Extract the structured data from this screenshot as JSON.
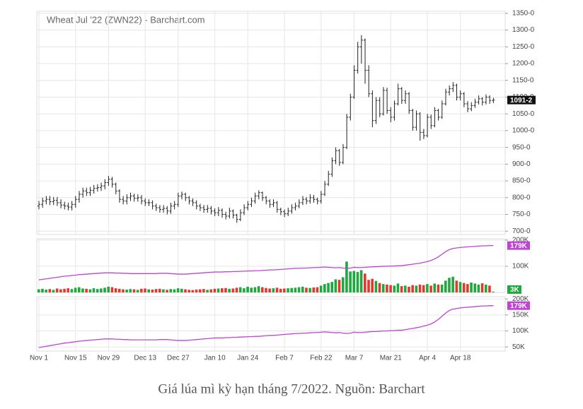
{
  "chart_data": {
    "type": "ohlc",
    "title": "Wheat Jul '22 (ZWN22) - Barchart.com",
    "categories": [
      "Nov 1",
      null,
      null,
      null,
      null,
      null,
      null,
      null,
      null,
      null,
      "Nov 15",
      null,
      null,
      null,
      null,
      null,
      null,
      null,
      null,
      "Nov 29",
      null,
      null,
      null,
      null,
      null,
      null,
      null,
      null,
      null,
      "Dec 13",
      null,
      null,
      null,
      null,
      null,
      null,
      null,
      null,
      "Dec 27",
      null,
      null,
      null,
      null,
      null,
      null,
      null,
      null,
      null,
      "Jan 10",
      null,
      null,
      null,
      null,
      null,
      null,
      null,
      null,
      "Jan 24",
      null,
      null,
      null,
      null,
      null,
      null,
      null,
      null,
      null,
      "Feb 7",
      null,
      null,
      null,
      null,
      null,
      null,
      null,
      null,
      null,
      "Feb 22",
      null,
      null,
      null,
      null,
      null,
      null,
      null,
      null,
      "Mar 7",
      null,
      null,
      null,
      null,
      null,
      null,
      null,
      null,
      null,
      "Mar 21",
      null,
      null,
      null,
      null,
      null,
      null,
      null,
      null,
      null,
      "Apr 4",
      null,
      null,
      null,
      null,
      null,
      null,
      null,
      null,
      "Apr 18",
      null,
      null,
      null,
      null,
      null,
      null,
      null,
      null,
      null
    ],
    "ohlc": [
      [
        775,
        790,
        765,
        780
      ],
      [
        780,
        800,
        770,
        790
      ],
      [
        790,
        805,
        780,
        795
      ],
      [
        795,
        805,
        778,
        788
      ],
      [
        788,
        802,
        778,
        792
      ],
      [
        792,
        802,
        775,
        785
      ],
      [
        785,
        795,
        768,
        778
      ],
      [
        778,
        788,
        765,
        775
      ],
      [
        775,
        785,
        762,
        772
      ],
      [
        772,
        790,
        762,
        780
      ],
      [
        780,
        805,
        770,
        795
      ],
      [
        795,
        820,
        785,
        810
      ],
      [
        810,
        830,
        800,
        820
      ],
      [
        820,
        830,
        805,
        815
      ],
      [
        815,
        832,
        805,
        822
      ],
      [
        822,
        838,
        812,
        828
      ],
      [
        828,
        840,
        818,
        830
      ],
      [
        830,
        845,
        820,
        835
      ],
      [
        835,
        855,
        825,
        845
      ],
      [
        845,
        865,
        835,
        855
      ],
      [
        855,
        862,
        830,
        840
      ],
      [
        840,
        845,
        810,
        820
      ],
      [
        820,
        825,
        785,
        795
      ],
      [
        795,
        805,
        780,
        790
      ],
      [
        790,
        810,
        780,
        800
      ],
      [
        800,
        815,
        790,
        805
      ],
      [
        805,
        812,
        788,
        798
      ],
      [
        798,
        810,
        788,
        800
      ],
      [
        800,
        808,
        780,
        790
      ],
      [
        790,
        798,
        775,
        785
      ],
      [
        785,
        795,
        775,
        785
      ],
      [
        785,
        792,
        765,
        775
      ],
      [
        775,
        782,
        760,
        770
      ],
      [
        770,
        778,
        755,
        765
      ],
      [
        765,
        778,
        755,
        768
      ],
      [
        768,
        775,
        750,
        760
      ],
      [
        760,
        785,
        752,
        775
      ],
      [
        775,
        790,
        765,
        780
      ],
      [
        780,
        815,
        772,
        805
      ],
      [
        805,
        818,
        795,
        810
      ],
      [
        810,
        815,
        790,
        800
      ],
      [
        800,
        805,
        780,
        790
      ],
      [
        790,
        798,
        775,
        785
      ],
      [
        785,
        792,
        765,
        775
      ],
      [
        775,
        782,
        760,
        770
      ],
      [
        770,
        778,
        755,
        765
      ],
      [
        765,
        778,
        755,
        768
      ],
      [
        768,
        775,
        750,
        760
      ],
      [
        760,
        768,
        745,
        755
      ],
      [
        755,
        772,
        745,
        762
      ],
      [
        762,
        768,
        740,
        750
      ],
      [
        750,
        758,
        735,
        745
      ],
      [
        745,
        770,
        738,
        760
      ],
      [
        760,
        765,
        738,
        748
      ],
      [
        748,
        752,
        725,
        735
      ],
      [
        735,
        765,
        730,
        755
      ],
      [
        755,
        780,
        748,
        770
      ],
      [
        770,
        790,
        762,
        780
      ],
      [
        780,
        800,
        772,
        790
      ],
      [
        790,
        815,
        782,
        805
      ],
      [
        805,
        822,
        795,
        815
      ],
      [
        815,
        818,
        790,
        800
      ],
      [
        800,
        805,
        780,
        790
      ],
      [
        790,
        795,
        770,
        780
      ],
      [
        780,
        795,
        772,
        785
      ],
      [
        785,
        790,
        755,
        765
      ],
      [
        765,
        770,
        748,
        758
      ],
      [
        758,
        765,
        742,
        752
      ],
      [
        752,
        770,
        745,
        760
      ],
      [
        760,
        780,
        752,
        770
      ],
      [
        770,
        785,
        762,
        775
      ],
      [
        775,
        795,
        768,
        785
      ],
      [
        785,
        805,
        778,
        795
      ],
      [
        795,
        802,
        780,
        790
      ],
      [
        790,
        810,
        782,
        800
      ],
      [
        800,
        808,
        785,
        795
      ],
      [
        795,
        800,
        780,
        790
      ],
      [
        790,
        820,
        782,
        810
      ],
      [
        810,
        850,
        805,
        840
      ],
      [
        840,
        880,
        835,
        870
      ],
      [
        870,
        920,
        862,
        910
      ],
      [
        910,
        950,
        900,
        940
      ],
      [
        940,
        945,
        895,
        905
      ],
      [
        905,
        960,
        900,
        950
      ],
      [
        950,
        1050,
        945,
        1040
      ],
      [
        1040,
        1110,
        1030,
        1100
      ],
      [
        1100,
        1195,
        1095,
        1180
      ],
      [
        1180,
        1265,
        1170,
        1250
      ],
      [
        1250,
        1285,
        1200,
        1270
      ],
      [
        1270,
        1275,
        1140,
        1180
      ],
      [
        1180,
        1195,
        1100,
        1110
      ],
      [
        1110,
        1120,
        1010,
        1030
      ],
      [
        1030,
        1100,
        1020,
        1090
      ],
      [
        1090,
        1100,
        1040,
        1050
      ],
      [
        1050,
        1130,
        1045,
        1120
      ],
      [
        1120,
        1128,
        1050,
        1060
      ],
      [
        1060,
        1070,
        1025,
        1040
      ],
      [
        1040,
        1090,
        1030,
        1080
      ],
      [
        1080,
        1140,
        1075,
        1125
      ],
      [
        1125,
        1130,
        1080,
        1090
      ],
      [
        1090,
        1120,
        1080,
        1110
      ],
      [
        1110,
        1115,
        1050,
        1060
      ],
      [
        1060,
        1065,
        1000,
        1010
      ],
      [
        1010,
        1060,
        1000,
        1050
      ],
      [
        1050,
        1055,
        970,
        995
      ],
      [
        995,
        1005,
        975,
        985
      ],
      [
        985,
        1050,
        980,
        1040
      ],
      [
        1040,
        1048,
        1005,
        1015
      ],
      [
        1015,
        1070,
        1010,
        1060
      ],
      [
        1060,
        1065,
        1030,
        1040
      ],
      [
        1040,
        1090,
        1035,
        1080
      ],
      [
        1080,
        1125,
        1075,
        1115
      ],
      [
        1115,
        1135,
        1105,
        1125
      ],
      [
        1125,
        1145,
        1115,
        1135
      ],
      [
        1135,
        1140,
        1090,
        1100
      ],
      [
        1100,
        1120,
        1090,
        1110
      ],
      [
        1110,
        1115,
        1070,
        1080
      ],
      [
        1080,
        1088,
        1055,
        1065
      ],
      [
        1065,
        1085,
        1058,
        1075
      ],
      [
        1075,
        1095,
        1068,
        1085
      ],
      [
        1085,
        1105,
        1078,
        1095
      ],
      [
        1095,
        1100,
        1075,
        1085
      ],
      [
        1085,
        1108,
        1078,
        1100
      ],
      [
        1100,
        1105,
        1080,
        1090
      ],
      [
        1090,
        1098,
        1082,
        1091.25
      ]
    ],
    "bar_color": "#222222",
    "ylim": [
      690,
      1356
    ],
    "yticks": [
      {
        "value": 700,
        "label": "700-0"
      },
      {
        "value": 750,
        "label": "750-0"
      },
      {
        "value": 800,
        "label": "800-0"
      },
      {
        "value": 850,
        "label": "850-0"
      },
      {
        "value": 900,
        "label": "900-0"
      },
      {
        "value": 950,
        "label": "950-0"
      },
      {
        "value": 1000,
        "label": "1000-0"
      },
      {
        "value": 1050,
        "label": "1050-0"
      },
      {
        "value": 1100,
        "label": "1100-0"
      },
      {
        "value": 1150,
        "label": "1150-0"
      },
      {
        "value": 1200,
        "label": "1200-0"
      },
      {
        "value": 1250,
        "label": "1250-0"
      },
      {
        "value": 1300,
        "label": "1300-0"
      },
      {
        "value": 1350,
        "label": "1350-0"
      }
    ],
    "last_price_label": "1091-2",
    "grid": true,
    "volume": {
      "values": [
        12000,
        14000,
        11000,
        13000,
        10000,
        15000,
        12000,
        14000,
        16000,
        13000,
        18000,
        20000,
        15000,
        14000,
        12000,
        16000,
        13000,
        15000,
        18000,
        22000,
        20000,
        16000,
        14000,
        12000,
        11000,
        13000,
        12000,
        10000,
        14000,
        15000,
        12000,
        11000,
        13000,
        14000,
        12000,
        10000,
        13000,
        12000,
        16000,
        14000,
        12000,
        10000,
        9000,
        11000,
        12000,
        13000,
        10000,
        12000,
        14000,
        15000,
        16000,
        17000,
        14000,
        15000,
        18000,
        20000,
        16000,
        22000,
        18000,
        20000,
        24000,
        20000,
        17000,
        15000,
        16000,
        18000,
        14000,
        15000,
        16000,
        17000,
        18000,
        20000,
        22000,
        18000,
        17000,
        19000,
        20000,
        26000,
        32000,
        36000,
        40000,
        50000,
        48000,
        58000,
        118000,
        80000,
        82000,
        78000,
        85000,
        72000,
        48000,
        52000,
        44000,
        36000,
        32000,
        30000,
        28000,
        26000,
        34000,
        24000,
        26000,
        22000,
        28000,
        26000,
        30000,
        28000,
        32000,
        26000,
        34000,
        30000,
        30000,
        45000,
        56000,
        60000,
        45000,
        40000,
        36000,
        32000,
        38000,
        34000,
        30000,
        35000,
        30000,
        26000,
        3000
      ],
      "last_label": "3K",
      "up_color": "#1fa83f",
      "down_color": "#e0392d",
      "ylim": [
        0,
        205000
      ],
      "yticks": [
        {
          "value": 100000,
          "label": "100K"
        },
        {
          "value": 200000,
          "label": "200K"
        }
      ]
    },
    "open_interest": {
      "values": [
        48000,
        50000,
        52000,
        54000,
        56000,
        58000,
        60000,
        62000,
        63000,
        65000,
        66000,
        68000,
        69000,
        70000,
        71000,
        72000,
        73000,
        74000,
        75000,
        75000,
        75000,
        74000,
        74000,
        73000,
        73000,
        72000,
        72000,
        72000,
        72000,
        72000,
        72000,
        72000,
        72000,
        73000,
        73000,
        73000,
        72000,
        71000,
        70000,
        70000,
        70000,
        71000,
        72000,
        73000,
        74000,
        75000,
        76000,
        77000,
        78000,
        78000,
        78000,
        79000,
        79000,
        80000,
        80000,
        81000,
        81000,
        82000,
        82000,
        83000,
        83000,
        84000,
        85000,
        86000,
        86000,
        87000,
        88000,
        89000,
        90000,
        91000,
        92000,
        92000,
        93000,
        93000,
        94000,
        95000,
        95000,
        96000,
        97000,
        96000,
        95000,
        94000,
        95000,
        93000,
        92000,
        93000,
        96000,
        95000,
        95000,
        96000,
        97000,
        98000,
        98000,
        99000,
        100000,
        100000,
        101000,
        101000,
        102000,
        102000,
        104000,
        106000,
        108000,
        110000,
        112000,
        115000,
        118000,
        122000,
        128000,
        136000,
        146000,
        156000,
        164000,
        168000,
        170000,
        172000,
        173000,
        174000,
        175000,
        176000,
        177000,
        178000,
        178000,
        179000,
        179000
      ],
      "color": "#c043d6",
      "last_label": "179K",
      "ylim": [
        37000,
        207000
      ],
      "yticks": [
        {
          "value": 50000,
          "label": "50K"
        },
        {
          "value": 100000,
          "label": "100K"
        },
        {
          "value": 150000,
          "label": "150K"
        },
        {
          "value": 200000,
          "label": "200K"
        }
      ]
    }
  },
  "caption": "Giá lúa mì kỳ hạn tháng 7/2022. Nguồn: Barchart"
}
